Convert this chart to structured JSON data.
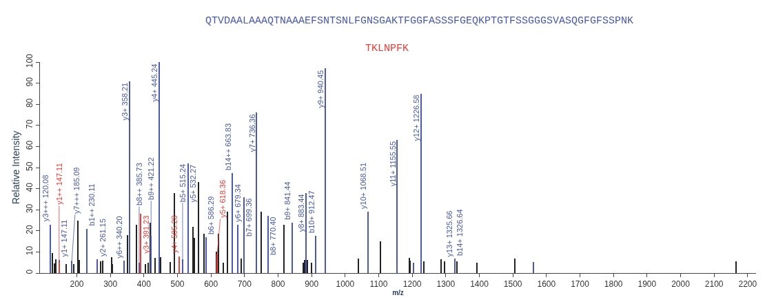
{
  "chart_data": {
    "type": "bar",
    "xlabel": "m/z",
    "ylabel": "Relative Intensity",
    "annotations": [
      "QTVDAALAAAQTNAAAEFSNTSNLFGNSGAKTFGGFASSSFGEQKPTGTFSSGGGSVASQGFGFSSPNK",
      "TKLNPFK",
      {
        "text": "y13+ 1325.66",
        "x": 1325.66,
        "y": 6.3
      }
    ],
    "xlim": [
      90,
      2225
    ],
    "xticks": [
      200,
      300,
      400,
      500,
      600,
      700,
      800,
      900,
      1000,
      1100,
      1200,
      1300,
      1400,
      1500,
      1600,
      1700,
      1800,
      1900,
      2000,
      2100,
      2200
    ],
    "ylim": [
      0,
      100
    ],
    "yticks": [
      0,
      10,
      20,
      30,
      40,
      50,
      60,
      70,
      80,
      90,
      100
    ],
    "series": [
      {
        "color": "#222222",
        "x": [
          128,
          134,
          138,
          168,
          191,
          203,
          208,
          271,
          278,
          303,
          307,
          351,
          377,
          405,
          412,
          420,
          434,
          450,
          479,
          491,
          547,
          550,
          562,
          580,
          617,
          623,
          637,
          650,
          690,
          750,
          818,
          876,
          879,
          888,
          899,
          1040,
          1106,
          1192,
          1194,
          1234,
          1287,
          1297,
          1334,
          1392,
          1506,
          2166
        ],
        "values": [
          9.5,
          4.6,
          6.5,
          4.4,
          4.1,
          25,
          6.1,
          5.6,
          5.9,
          7.5,
          4.4,
          18,
          23,
          4.4,
          5,
          24,
          7.1,
          7.5,
          5.2,
          38,
          22,
          16.6,
          43,
          18.7,
          10,
          18.5,
          5,
          29,
          6.8,
          29,
          23,
          5,
          6.3,
          6.3,
          5,
          6.8,
          15,
          7.1,
          5.8,
          5.6,
          6.5,
          5.4,
          5.6,
          5,
          7,
          5.7
        ]
      },
      {
        "color": "#4a5aa8",
        "x": [
          120.08,
          147.11,
          185.09,
          230.11,
          261.15,
          340.2,
          358.21,
          385.73,
          421.22,
          445.24,
          515.24,
          532.27,
          586.29,
          663.83,
          679.34,
          699.36,
          736.36,
          770.4,
          841.44,
          883.44,
          912.47,
          940.45,
          1068.51,
          1155.55,
          1204,
          1226.58,
          1326.64,
          1561
        ],
        "values": [
          23,
          6.3,
          6,
          21,
          6.5,
          5.8,
          91,
          5,
          17.5,
          100,
          6.6,
          52,
          17,
          47.5,
          23,
          36,
          76,
          27,
          24,
          38,
          17.6,
          97,
          29,
          63,
          5,
          85,
          6.8,
          5.3
        ],
        "value_labels": [
          "y3+++ 120.08",
          "y1+ 147.11",
          "y7+++ 185.09",
          "b1++ 230.11",
          "y2+ 261.15",
          "y6++ 340.20",
          "y3+ 358.21",
          "b8++ 385.73",
          "b9++ 421.22",
          "y4+ 445.24",
          "b5+ 515.24",
          "y5+ 532.27",
          "b6+ 586.29",
          "b14++ 663.83",
          "y6+ 679.34",
          "b7+ 699.36",
          "y7+ 736.36",
          "b8+ 770.40",
          "b9+ 841.44",
          "y8+ 883.44",
          "b10+ 912.47",
          "y9+ 940.45",
          "y10+ 1068.51",
          "y11+ 1155.55",
          null,
          "y12+ 1226.58",
          "b14+ 1326.64",
          null
        ]
      },
      {
        "color": "#e8403a",
        "x": [
          147.11,
          391.23,
          505.28,
          618.36
        ],
        "values": [
          5,
          28,
          8,
          8.8
        ],
        "value_labels": [
          "y1++ 147.11",
          "y3+ 391.23",
          "y4+ 505.28",
          "y5+ 618.36"
        ]
      }
    ]
  }
}
